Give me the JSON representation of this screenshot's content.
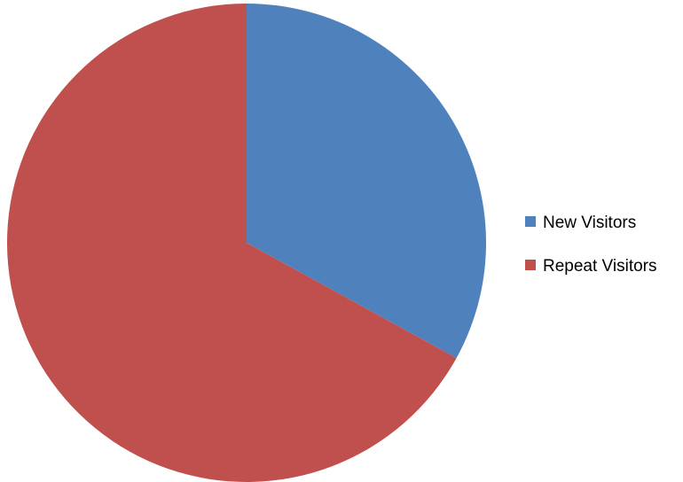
{
  "chart_data": {
    "type": "pie",
    "categories": [
      "New Visitors",
      "Repeat Visitors"
    ],
    "values": [
      33,
      67
    ],
    "colors": [
      "#4f81bd",
      "#c0504d"
    ],
    "start_angle": "12 o'clock",
    "direction": "clockwise",
    "legend": {
      "placement": "right",
      "entries": [
        "New Visitors",
        "Repeat Visitors"
      ]
    }
  }
}
